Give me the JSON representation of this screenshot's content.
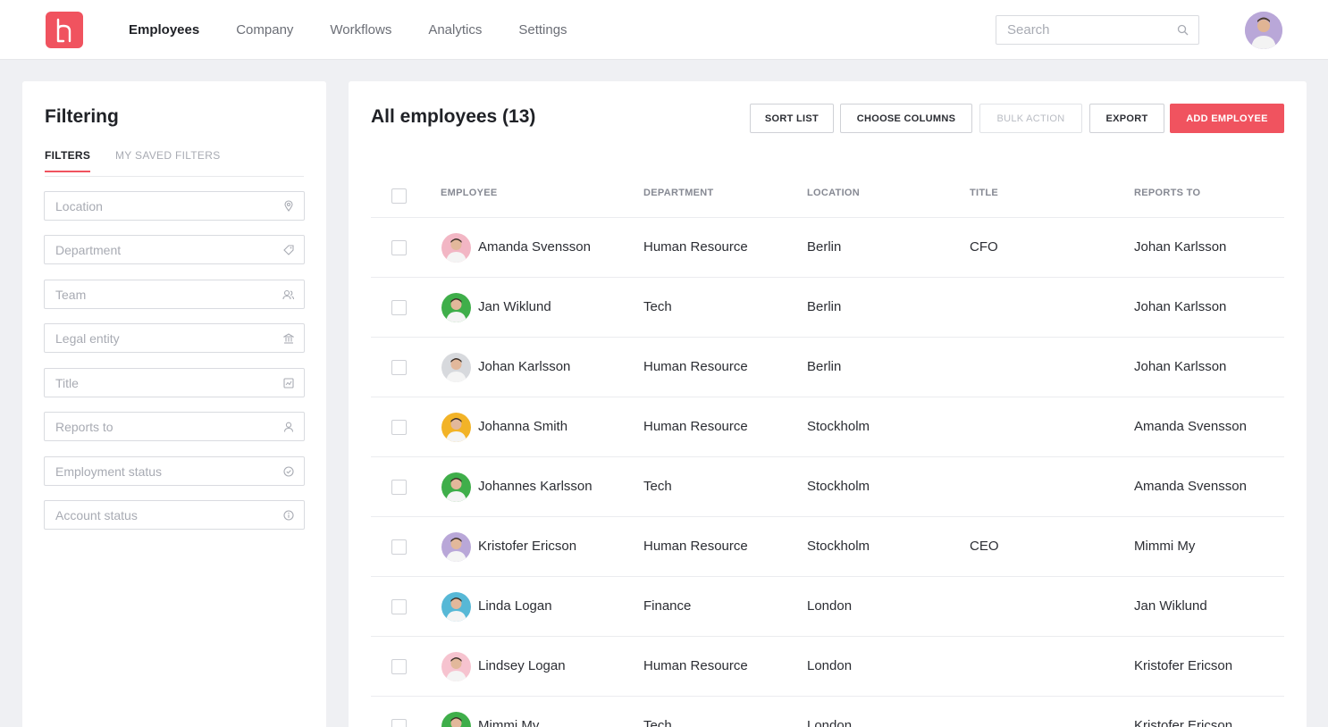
{
  "nav": {
    "items": [
      {
        "label": "Employees",
        "active": true
      },
      {
        "label": "Company",
        "active": false
      },
      {
        "label": "Workflows",
        "active": false
      },
      {
        "label": "Analytics",
        "active": false
      },
      {
        "label": "Settings",
        "active": false
      }
    ]
  },
  "search": {
    "placeholder": "Search"
  },
  "brand_color": "#f0535f",
  "filter": {
    "title": "Filtering",
    "tabs": [
      {
        "label": "FILTERS",
        "active": true
      },
      {
        "label": "MY SAVED FILTERS",
        "active": false
      }
    ],
    "fields": [
      {
        "label": "Location",
        "icon": "location-pin-icon"
      },
      {
        "label": "Department",
        "icon": "tag-icon"
      },
      {
        "label": "Team",
        "icon": "team-icon"
      },
      {
        "label": "Legal entity",
        "icon": "bank-icon"
      },
      {
        "label": "Title",
        "icon": "id-card-icon"
      },
      {
        "label": "Reports to",
        "icon": "person-icon"
      },
      {
        "label": "Employment status",
        "icon": "check-circle-icon"
      },
      {
        "label": "Account status",
        "icon": "info-circle-icon"
      }
    ]
  },
  "main": {
    "title": "All employees (13)",
    "buttons": {
      "sort": "SORT LIST",
      "columns": "CHOOSE COLUMNS",
      "bulk": "BULK ACTION",
      "export": "EXPORT",
      "add": "ADD EMPLOYEE"
    },
    "columns": {
      "employee": "EMPLOYEE",
      "department": "DEPARTMENT",
      "location": "LOCATION",
      "title": "TITLE",
      "reports_to": "REPORTS TO"
    },
    "rows": [
      {
        "name": "Amanda Svensson",
        "department": "Human Resource",
        "location": "Berlin",
        "title": "CFO",
        "reports_to": "Johan Karlsson",
        "avatar_color": "#f2b6c4"
      },
      {
        "name": "Jan Wiklund",
        "department": "Tech",
        "location": "Berlin",
        "title": "",
        "reports_to": "Johan Karlsson",
        "avatar_color": "#3fae4a"
      },
      {
        "name": "Johan Karlsson",
        "department": "Human Resource",
        "location": "Berlin",
        "title": "",
        "reports_to": "Johan Karlsson",
        "avatar_color": "#d7d9dd"
      },
      {
        "name": "Johanna Smith",
        "department": "Human Resource",
        "location": "Stockholm",
        "title": "",
        "reports_to": "Amanda Svensson",
        "avatar_color": "#f2b327"
      },
      {
        "name": "Johannes Karlsson",
        "department": "Tech",
        "location": "Stockholm",
        "title": "",
        "reports_to": "Amanda Svensson",
        "avatar_color": "#3fae4a"
      },
      {
        "name": "Kristofer Ericson",
        "department": "Human Resource",
        "location": "Stockholm",
        "title": "CEO",
        "reports_to": "Mimmi My",
        "avatar_color": "#b9a7d8"
      },
      {
        "name": "Linda Logan",
        "department": "Finance",
        "location": "London",
        "title": "",
        "reports_to": "Jan Wiklund",
        "avatar_color": "#57b8d6"
      },
      {
        "name": "Lindsey Logan",
        "department": "Human Resource",
        "location": "London",
        "title": "",
        "reports_to": "Kristofer Ericson",
        "avatar_color": "#f6c3cf"
      },
      {
        "name": "Mimmi My",
        "department": "Tech",
        "location": "London",
        "title": "",
        "reports_to": "Kristofer Ericson",
        "avatar_color": "#3fae4a"
      }
    ]
  }
}
